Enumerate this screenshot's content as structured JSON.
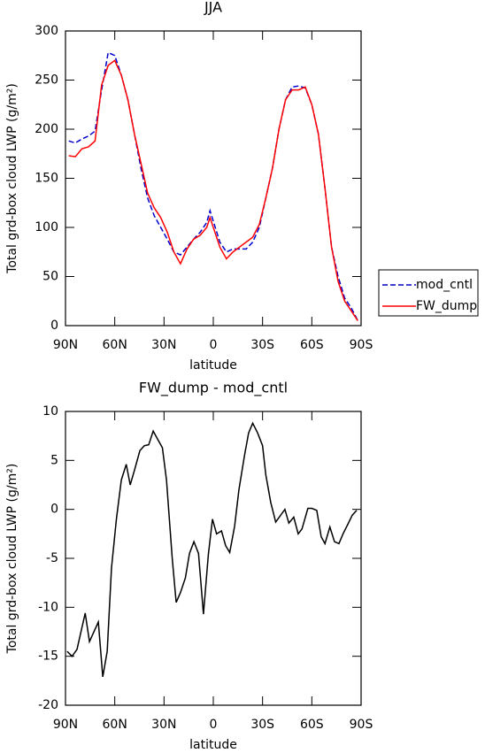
{
  "chart_data": [
    {
      "type": "line",
      "title": "JJA",
      "x_label": "latitude",
      "y_label": "Total grd-box cloud LWP (g/m²)",
      "x": [
        88,
        84,
        80,
        76,
        72,
        68,
        64,
        60,
        56,
        52,
        48,
        44,
        40,
        36,
        32,
        28,
        24,
        20,
        16,
        12,
        8,
        4,
        2,
        -4,
        -8,
        -12,
        -16,
        -20,
        -24,
        -28,
        -32,
        -36,
        -40,
        -44,
        -48,
        -52,
        -56,
        -60,
        -64,
        -68,
        -72,
        -76,
        -80,
        -84,
        -88
      ],
      "series": [
        {
          "name": "mod_cntl",
          "color": "#0000cc",
          "dash": true,
          "values": [
            188,
            186,
            190,
            193,
            198,
            240,
            278,
            275,
            255,
            230,
            195,
            160,
            130,
            112,
            100,
            88,
            75,
            72,
            80,
            88,
            95,
            105,
            117,
            85,
            75,
            78,
            78,
            78,
            85,
            100,
            130,
            160,
            200,
            230,
            243,
            244,
            242,
            225,
            195,
            140,
            80,
            50,
            28,
            18,
            5
          ]
        },
        {
          "name": "FW_dump",
          "color": "#ff0000",
          "dash": false,
          "values": [
            173,
            172,
            180,
            182,
            188,
            245,
            265,
            270,
            255,
            230,
            195,
            165,
            135,
            120,
            110,
            95,
            75,
            63,
            78,
            88,
            92,
            100,
            110,
            80,
            68,
            75,
            80,
            85,
            90,
            103,
            130,
            160,
            200,
            230,
            240,
            240,
            243,
            225,
            195,
            140,
            80,
            45,
            25,
            15,
            5
          ]
        }
      ],
      "xlim": [
        90,
        -90
      ],
      "xticks": [
        {
          "value": 90,
          "label": "90N"
        },
        {
          "value": 60,
          "label": "60N"
        },
        {
          "value": 30,
          "label": "30N"
        },
        0,
        {
          "value": -30,
          "label": "30S"
        },
        {
          "value": -60,
          "label": "60S"
        },
        {
          "value": -90,
          "label": "90S"
        }
      ],
      "ylim": [
        0,
        300
      ],
      "yticks": [
        0,
        50,
        100,
        150,
        200,
        250,
        300
      ],
      "legend": "right"
    },
    {
      "type": "line",
      "title": "FW_dump - mod_cntl",
      "x_label": "latitude",
      "y_label": "Total grd-box cloud LWP (g/m²)",
      "x": [
        89,
        86,
        83,
        78,
        75.4,
        70,
        67.3,
        64.6,
        62,
        59,
        56,
        53,
        50.6,
        48,
        44.7,
        42,
        39.3,
        36.6,
        34,
        31,
        28.5,
        25,
        22.6,
        20,
        17,
        14.5,
        11.8,
        9,
        6,
        3,
        0.5,
        -2,
        -5,
        -7.5,
        -10,
        -13,
        -15.6,
        -19,
        -21.5,
        -24,
        -27,
        -30,
        -32,
        -35,
        -38,
        -41,
        -43.6,
        -46,
        -49,
        -51.7,
        -54,
        -57.6,
        -60,
        -63,
        -65.7,
        -68,
        -71,
        -73.8,
        -76.5,
        -79,
        -82,
        -84.6,
        -87.3
      ],
      "color": "#000000",
      "values": [
        -14.5,
        -15,
        -14.3,
        -10.6,
        -13.5,
        -11.5,
        -17.1,
        -14.5,
        -6,
        -1,
        3,
        4.6,
        2.5,
        4,
        6,
        6.5,
        6.6,
        8,
        7.2,
        6.3,
        3,
        -5,
        -9.5,
        -8.5,
        -7,
        -4.5,
        -3.3,
        -4.5,
        -10.7,
        -4.6,
        -1,
        -2.5,
        -2.2,
        -3.7,
        -4.4,
        -1.7,
        2,
        5.5,
        7.8,
        8.8,
        7.8,
        6.5,
        3.5,
        0.7,
        -1.3,
        -0.6,
        0,
        -1.4,
        -0.8,
        -2.5,
        -2,
        0.1,
        0.1,
        -0.1,
        -2.8,
        -3.5,
        -1.8,
        -3.3,
        -3.5,
        -2.5,
        -1.5,
        -0.6,
        -0.1
      ],
      "xlim": [
        90,
        -90
      ],
      "xticks": [
        {
          "value": 90,
          "label": "90N"
        },
        {
          "value": 60,
          "label": "60N"
        },
        {
          "value": 30,
          "label": "30N"
        },
        0,
        {
          "value": -30,
          "label": "30S"
        },
        {
          "value": -60,
          "label": "60S"
        },
        {
          "value": -90,
          "label": "90S"
        }
      ],
      "ylim": [
        -20,
        10
      ],
      "yticks": [
        -20,
        -15,
        -10,
        -5,
        0,
        5,
        10
      ]
    }
  ]
}
